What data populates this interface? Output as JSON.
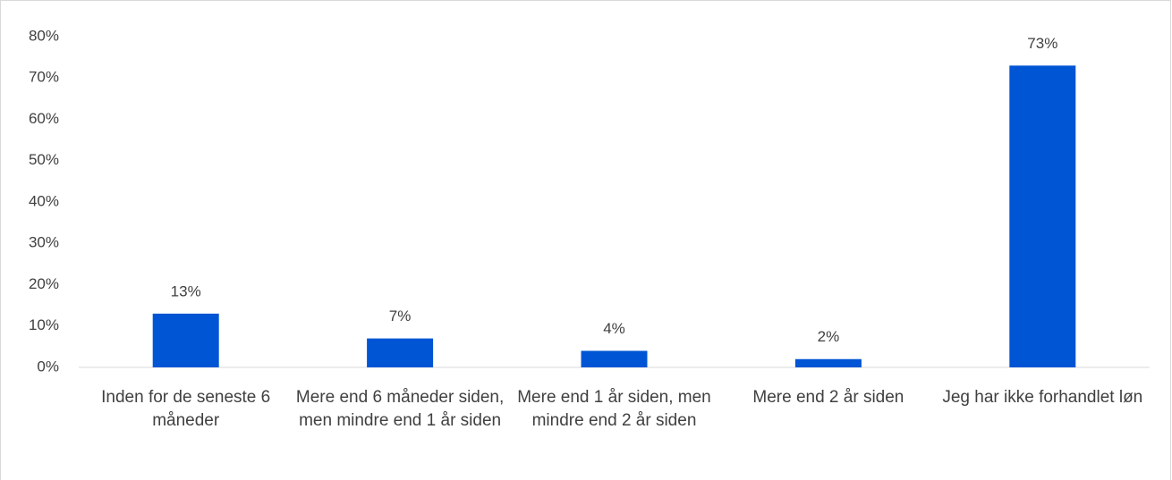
{
  "chart_data": {
    "type": "bar",
    "categories": [
      "Inden for de seneste 6 måneder",
      "Mere end 6 måneder siden, men mindre end 1 år siden",
      "Mere end 1 år siden, men mindre end 2 år siden",
      "Mere end 2 år siden",
      "Jeg har ikke forhandlet løn"
    ],
    "values": [
      13,
      7,
      4,
      2,
      73
    ],
    "value_labels": [
      "13%",
      "7%",
      "4%",
      "2%",
      "73%"
    ],
    "color": "#0055d4",
    "ylim": [
      0,
      80
    ],
    "yticks": [
      {
        "value": 0,
        "label": "0%"
      },
      {
        "value": 10,
        "label": "10%"
      },
      {
        "value": 20,
        "label": "20%"
      },
      {
        "value": 30,
        "label": "30%"
      },
      {
        "value": 40,
        "label": "40%"
      },
      {
        "value": 50,
        "label": "50%"
      },
      {
        "value": 60,
        "label": "60%"
      },
      {
        "value": 70,
        "label": "70%"
      },
      {
        "value": 80,
        "label": "80%"
      }
    ],
    "grid": false
  }
}
